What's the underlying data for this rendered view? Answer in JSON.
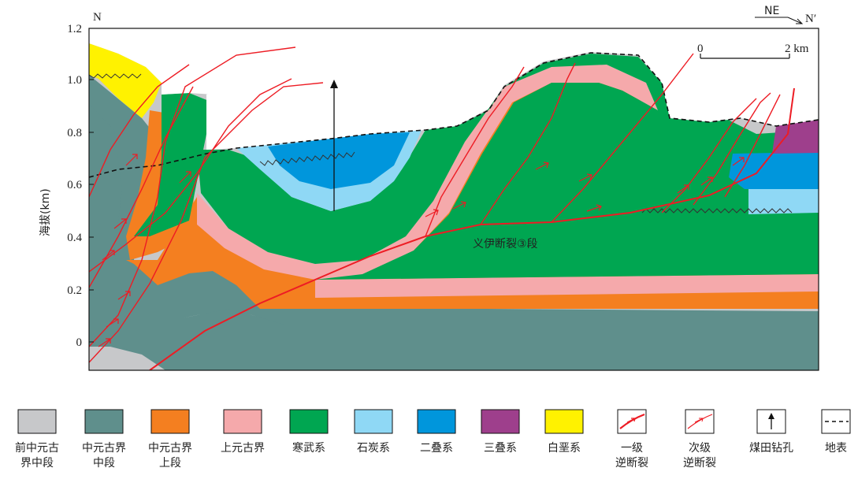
{
  "figure": {
    "section_start": "N",
    "section_end": "N′",
    "direction_label": "NE",
    "scale_start": "0",
    "scale_end": "2 km",
    "y_axis_label": "海拔(km)",
    "y_ticks": [
      "1.2",
      "1.0",
      "0.8",
      "0.6",
      "0.4",
      "0.2",
      "0"
    ],
    "fault_label": "义伊断裂③段"
  },
  "colors": {
    "pre_middle_proterozoic": "#c7c8ca",
    "middle_proterozoic_middle": "#5f8f8c",
    "middle_proterozoic_upper": "#f47f20",
    "upper_proterozoic": "#f5a9ab",
    "cambrian": "#00a651",
    "carboniferous": "#8fd8f5",
    "permian": "#0096dc",
    "triassic": "#9e3f8c",
    "cretaceous": "#fff200",
    "fault": "#ed1c24"
  },
  "legend": [
    {
      "key": "pre_middle_proterozoic",
      "line1": "前中元古",
      "line2": "界中段",
      "icon": "swatch"
    },
    {
      "key": "middle_proterozoic_middle",
      "line1": "中元古界",
      "line2": "中段",
      "icon": "swatch"
    },
    {
      "key": "middle_proterozoic_upper",
      "line1": "中元古界",
      "line2": "上段",
      "icon": "swatch"
    },
    {
      "key": "upper_proterozoic",
      "line1": "上元古界",
      "line2": "",
      "icon": "swatch"
    },
    {
      "key": "cambrian",
      "line1": "寒武系",
      "line2": "",
      "icon": "swatch"
    },
    {
      "key": "carboniferous",
      "line1": "石炭系",
      "line2": "",
      "icon": "swatch"
    },
    {
      "key": "permian",
      "line1": "二叠系",
      "line2": "",
      "icon": "swatch"
    },
    {
      "key": "triassic",
      "line1": "三叠系",
      "line2": "",
      "icon": "swatch"
    },
    {
      "key": "cretaceous",
      "line1": "白垩系",
      "line2": "",
      "icon": "swatch"
    },
    {
      "key": "primary_thrust",
      "line1": "一级",
      "line2": "逆断裂",
      "icon": "fault-primary"
    },
    {
      "key": "secondary_thrust",
      "line1": "次级",
      "line2": "逆断裂",
      "icon": "fault-secondary"
    },
    {
      "key": "coal_borehole",
      "line1": "煤田钻孔",
      "line2": "",
      "icon": "borehole"
    },
    {
      "key": "ground_surface",
      "line1": "地表",
      "line2": "",
      "icon": "surface"
    }
  ]
}
